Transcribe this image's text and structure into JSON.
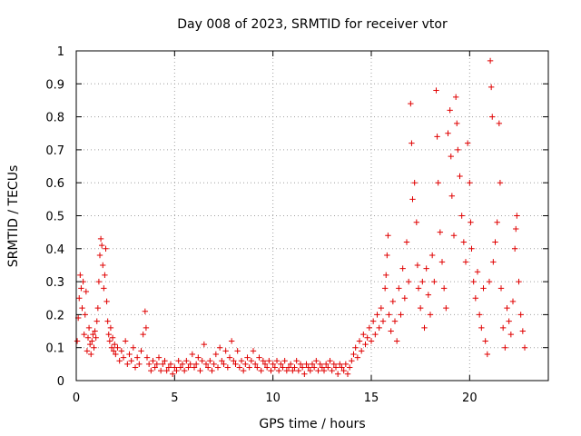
{
  "chart_data": {
    "type": "scatter",
    "title": "Day 008 of 2023, SRMTID for receiver vtor",
    "xlabel": "GPS time / hours",
    "ylabel": "SRMTID / TECUs",
    "xlim": [
      0,
      24
    ],
    "ylim": [
      0,
      1
    ],
    "xticks": [
      "0",
      "5",
      "10",
      "15",
      "20"
    ],
    "yticks": [
      "0",
      "0.1",
      "0.2",
      "0.3",
      "0.4",
      "0.5",
      "0.6",
      "0.7",
      "0.8",
      "0.9",
      "1"
    ],
    "grid": true,
    "marker": "plus",
    "colors": {
      "series": "#e00000",
      "grid": "#a0a0a0",
      "axis": "#000000"
    },
    "series": [
      {
        "name": "SRMTID",
        "points": [
          [
            0.05,
            0.12
          ],
          [
            0.1,
            0.19
          ],
          [
            0.15,
            0.25
          ],
          [
            0.2,
            0.32
          ],
          [
            0.25,
            0.28
          ],
          [
            0.3,
            0.22
          ],
          [
            0.35,
            0.3
          ],
          [
            0.4,
            0.14
          ],
          [
            0.45,
            0.2
          ],
          [
            0.5,
            0.27
          ],
          [
            0.55,
            0.09
          ],
          [
            0.6,
            0.13
          ],
          [
            0.65,
            0.16
          ],
          [
            0.7,
            0.11
          ],
          [
            0.75,
            0.08
          ],
          [
            0.8,
            0.12
          ],
          [
            0.85,
            0.14
          ],
          [
            0.9,
            0.1
          ],
          [
            0.95,
            0.15
          ],
          [
            1.0,
            0.13
          ],
          [
            1.05,
            0.18
          ],
          [
            1.1,
            0.22
          ],
          [
            1.15,
            0.3
          ],
          [
            1.2,
            0.38
          ],
          [
            1.25,
            0.43
          ],
          [
            1.3,
            0.41
          ],
          [
            1.35,
            0.35
          ],
          [
            1.4,
            0.28
          ],
          [
            1.45,
            0.32
          ],
          [
            1.5,
            0.4
          ],
          [
            1.55,
            0.24
          ],
          [
            1.6,
            0.18
          ],
          [
            1.65,
            0.14
          ],
          [
            1.7,
            0.12
          ],
          [
            1.75,
            0.16
          ],
          [
            1.8,
            0.1
          ],
          [
            1.85,
            0.13
          ],
          [
            1.9,
            0.09
          ],
          [
            1.95,
            0.11
          ],
          [
            2.0,
            0.08
          ],
          [
            2.1,
            0.1
          ],
          [
            2.2,
            0.06
          ],
          [
            2.3,
            0.09
          ],
          [
            2.4,
            0.07
          ],
          [
            2.5,
            0.12
          ],
          [
            2.6,
            0.05
          ],
          [
            2.7,
            0.08
          ],
          [
            2.8,
            0.06
          ],
          [
            2.9,
            0.1
          ],
          [
            3.0,
            0.04
          ],
          [
            3.1,
            0.07
          ],
          [
            3.2,
            0.05
          ],
          [
            3.3,
            0.09
          ],
          [
            3.4,
            0.14
          ],
          [
            3.5,
            0.21
          ],
          [
            3.55,
            0.16
          ],
          [
            3.6,
            0.07
          ],
          [
            3.7,
            0.05
          ],
          [
            3.8,
            0.03
          ],
          [
            3.9,
            0.06
          ],
          [
            4.0,
            0.04
          ],
          [
            4.1,
            0.05
          ],
          [
            4.2,
            0.07
          ],
          [
            4.3,
            0.03
          ],
          [
            4.4,
            0.05
          ],
          [
            4.5,
            0.06
          ],
          [
            4.6,
            0.03
          ],
          [
            4.7,
            0.04
          ],
          [
            4.8,
            0.05
          ],
          [
            4.9,
            0.02
          ],
          [
            5.0,
            0.04
          ],
          [
            5.1,
            0.03
          ],
          [
            5.2,
            0.06
          ],
          [
            5.3,
            0.04
          ],
          [
            5.4,
            0.05
          ],
          [
            5.5,
            0.03
          ],
          [
            5.6,
            0.06
          ],
          [
            5.7,
            0.04
          ],
          [
            5.8,
            0.05
          ],
          [
            5.9,
            0.08
          ],
          [
            6.0,
            0.04
          ],
          [
            6.1,
            0.05
          ],
          [
            6.2,
            0.07
          ],
          [
            6.3,
            0.03
          ],
          [
            6.4,
            0.06
          ],
          [
            6.5,
            0.11
          ],
          [
            6.6,
            0.05
          ],
          [
            6.7,
            0.04
          ],
          [
            6.8,
            0.06
          ],
          [
            6.9,
            0.03
          ],
          [
            7.0,
            0.05
          ],
          [
            7.1,
            0.08
          ],
          [
            7.2,
            0.04
          ],
          [
            7.3,
            0.1
          ],
          [
            7.4,
            0.06
          ],
          [
            7.5,
            0.05
          ],
          [
            7.6,
            0.09
          ],
          [
            7.7,
            0.04
          ],
          [
            7.8,
            0.07
          ],
          [
            7.9,
            0.12
          ],
          [
            8.0,
            0.06
          ],
          [
            8.1,
            0.05
          ],
          [
            8.2,
            0.09
          ],
          [
            8.3,
            0.04
          ],
          [
            8.4,
            0.06
          ],
          [
            8.5,
            0.03
          ],
          [
            8.6,
            0.05
          ],
          [
            8.7,
            0.07
          ],
          [
            8.8,
            0.04
          ],
          [
            8.9,
            0.06
          ],
          [
            9.0,
            0.09
          ],
          [
            9.1,
            0.05
          ],
          [
            9.2,
            0.04
          ],
          [
            9.3,
            0.07
          ],
          [
            9.4,
            0.03
          ],
          [
            9.5,
            0.06
          ],
          [
            9.6,
            0.05
          ],
          [
            9.7,
            0.04
          ],
          [
            9.8,
            0.06
          ],
          [
            9.9,
            0.03
          ],
          [
            10.0,
            0.05
          ],
          [
            10.1,
            0.04
          ],
          [
            10.2,
            0.06
          ],
          [
            10.3,
            0.03
          ],
          [
            10.4,
            0.05
          ],
          [
            10.5,
            0.04
          ],
          [
            10.6,
            0.06
          ],
          [
            10.7,
            0.03
          ],
          [
            10.8,
            0.04
          ],
          [
            10.9,
            0.05
          ],
          [
            11.0,
            0.03
          ],
          [
            11.1,
            0.04
          ],
          [
            11.2,
            0.06
          ],
          [
            11.3,
            0.03
          ],
          [
            11.4,
            0.05
          ],
          [
            11.5,
            0.04
          ],
          [
            11.6,
            0.02
          ],
          [
            11.7,
            0.05
          ],
          [
            11.8,
            0.04
          ],
          [
            11.9,
            0.03
          ],
          [
            12.0,
            0.05
          ],
          [
            12.1,
            0.04
          ],
          [
            12.2,
            0.06
          ],
          [
            12.3,
            0.03
          ],
          [
            12.4,
            0.05
          ],
          [
            12.5,
            0.04
          ],
          [
            12.6,
            0.03
          ],
          [
            12.7,
            0.05
          ],
          [
            12.8,
            0.04
          ],
          [
            12.9,
            0.06
          ],
          [
            13.0,
            0.03
          ],
          [
            13.1,
            0.05
          ],
          [
            13.2,
            0.04
          ],
          [
            13.3,
            0.02
          ],
          [
            13.4,
            0.05
          ],
          [
            13.5,
            0.04
          ],
          [
            13.6,
            0.03
          ],
          [
            13.7,
            0.05
          ],
          [
            13.8,
            0.02
          ],
          [
            13.9,
            0.04
          ],
          [
            14.0,
            0.06
          ],
          [
            14.1,
            0.08
          ],
          [
            14.2,
            0.1
          ],
          [
            14.3,
            0.07
          ],
          [
            14.4,
            0.12
          ],
          [
            14.5,
            0.09
          ],
          [
            14.6,
            0.14
          ],
          [
            14.7,
            0.11
          ],
          [
            14.8,
            0.13
          ],
          [
            14.9,
            0.16
          ],
          [
            15.0,
            0.12
          ],
          [
            15.1,
            0.18
          ],
          [
            15.2,
            0.14
          ],
          [
            15.3,
            0.2
          ],
          [
            15.4,
            0.16
          ],
          [
            15.5,
            0.22
          ],
          [
            15.6,
            0.18
          ],
          [
            15.7,
            0.28
          ],
          [
            15.75,
            0.32
          ],
          [
            15.8,
            0.38
          ],
          [
            15.85,
            0.44
          ],
          [
            15.9,
            0.2
          ],
          [
            16.0,
            0.15
          ],
          [
            16.1,
            0.24
          ],
          [
            16.2,
            0.18
          ],
          [
            16.3,
            0.12
          ],
          [
            16.4,
            0.28
          ],
          [
            16.5,
            0.2
          ],
          [
            16.6,
            0.34
          ],
          [
            16.7,
            0.25
          ],
          [
            16.8,
            0.42
          ],
          [
            16.9,
            0.3
          ],
          [
            17.0,
            0.84
          ],
          [
            17.05,
            0.72
          ],
          [
            17.1,
            0.55
          ],
          [
            17.2,
            0.6
          ],
          [
            17.3,
            0.48
          ],
          [
            17.35,
            0.35
          ],
          [
            17.4,
            0.28
          ],
          [
            17.5,
            0.22
          ],
          [
            17.6,
            0.3
          ],
          [
            17.7,
            0.16
          ],
          [
            17.8,
            0.34
          ],
          [
            17.9,
            0.26
          ],
          [
            18.0,
            0.2
          ],
          [
            18.1,
            0.38
          ],
          [
            18.2,
            0.3
          ],
          [
            18.3,
            0.88
          ],
          [
            18.35,
            0.74
          ],
          [
            18.4,
            0.6
          ],
          [
            18.5,
            0.45
          ],
          [
            18.6,
            0.36
          ],
          [
            18.7,
            0.28
          ],
          [
            18.8,
            0.22
          ],
          [
            18.9,
            0.75
          ],
          [
            19.0,
            0.82
          ],
          [
            19.05,
            0.68
          ],
          [
            19.1,
            0.56
          ],
          [
            19.2,
            0.44
          ],
          [
            19.3,
            0.86
          ],
          [
            19.35,
            0.78
          ],
          [
            19.4,
            0.7
          ],
          [
            19.5,
            0.62
          ],
          [
            19.6,
            0.5
          ],
          [
            19.7,
            0.42
          ],
          [
            19.8,
            0.36
          ],
          [
            19.9,
            0.72
          ],
          [
            20.0,
            0.6
          ],
          [
            20.05,
            0.48
          ],
          [
            20.1,
            0.4
          ],
          [
            20.2,
            0.3
          ],
          [
            20.3,
            0.25
          ],
          [
            20.4,
            0.33
          ],
          [
            20.5,
            0.2
          ],
          [
            20.6,
            0.16
          ],
          [
            20.7,
            0.28
          ],
          [
            20.8,
            0.12
          ],
          [
            20.9,
            0.08
          ],
          [
            21.0,
            0.3
          ],
          [
            21.05,
            0.97
          ],
          [
            21.1,
            0.89
          ],
          [
            21.15,
            0.8
          ],
          [
            21.2,
            0.36
          ],
          [
            21.3,
            0.42
          ],
          [
            21.4,
            0.48
          ],
          [
            21.5,
            0.78
          ],
          [
            21.55,
            0.6
          ],
          [
            21.6,
            0.28
          ],
          [
            21.7,
            0.16
          ],
          [
            21.8,
            0.1
          ],
          [
            21.9,
            0.22
          ],
          [
            22.0,
            0.18
          ],
          [
            22.1,
            0.14
          ],
          [
            22.2,
            0.24
          ],
          [
            22.3,
            0.4
          ],
          [
            22.35,
            0.46
          ],
          [
            22.4,
            0.5
          ],
          [
            22.5,
            0.3
          ],
          [
            22.6,
            0.2
          ],
          [
            22.7,
            0.15
          ],
          [
            22.8,
            0.1
          ]
        ]
      }
    ]
  }
}
